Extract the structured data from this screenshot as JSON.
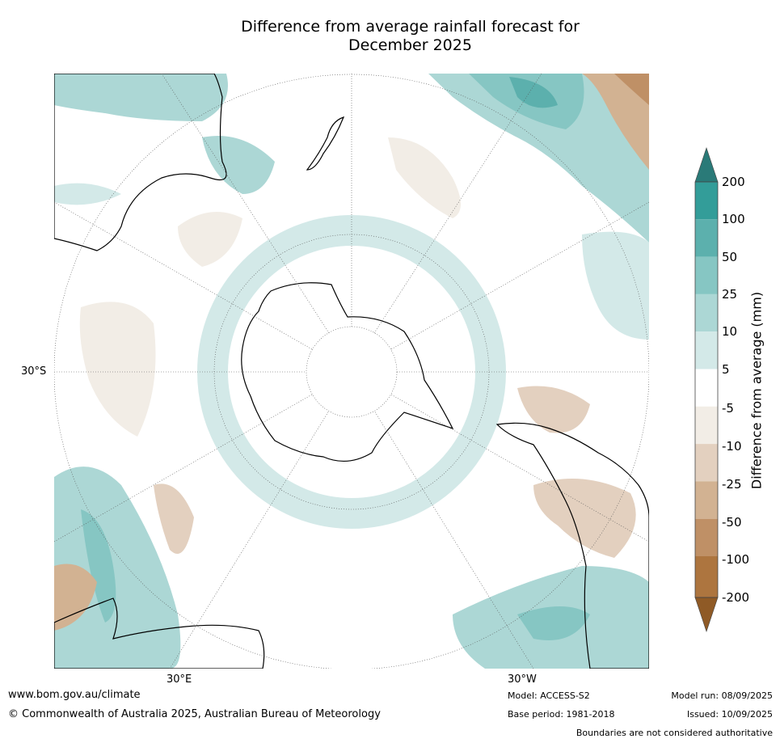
{
  "title_line1": "Difference from average rainfall forecast for",
  "title_line2": "December 2025",
  "map_labels": {
    "lat_label": "30°S",
    "lon_east": "30°E",
    "lon_west": "30°W"
  },
  "colorbar": {
    "label": "Difference from average (mm)",
    "ticks": [
      "200",
      "100",
      "50",
      "25",
      "10",
      "5",
      "-5",
      "-10",
      "-25",
      "-50",
      "-100",
      "-200"
    ],
    "colors": {
      "gt200": "#2a7a78",
      "100_200": "#339d99",
      "50_100": "#5cb0ad",
      "25_50": "#86c6c3",
      "10_25": "#acd7d5",
      "5_10": "#d3e9e8",
      "neg5_5": "#ffffff",
      "neg10_neg5": "#f2ede6",
      "neg25_neg10": "#e3d0bf",
      "neg50_neg25": "#d2b292",
      "neg100_neg50": "#bf9066",
      "neg200_neg100": "#ad753f",
      "lt_neg200": "#8f5a26"
    }
  },
  "footer": {
    "website": "www.bom.gov.au/climate",
    "copyright": "© Commonwealth of Australia 2025, Australian Bureau of Meteorology",
    "model": "Model: ACCESS-S2",
    "base_period": "Base period: 1981-2018",
    "model_run": "Model run: 08/09/2025",
    "issued": "Issued: 10/09/2025",
    "disclaimer": "Boundaries are not considered authoritative"
  }
}
